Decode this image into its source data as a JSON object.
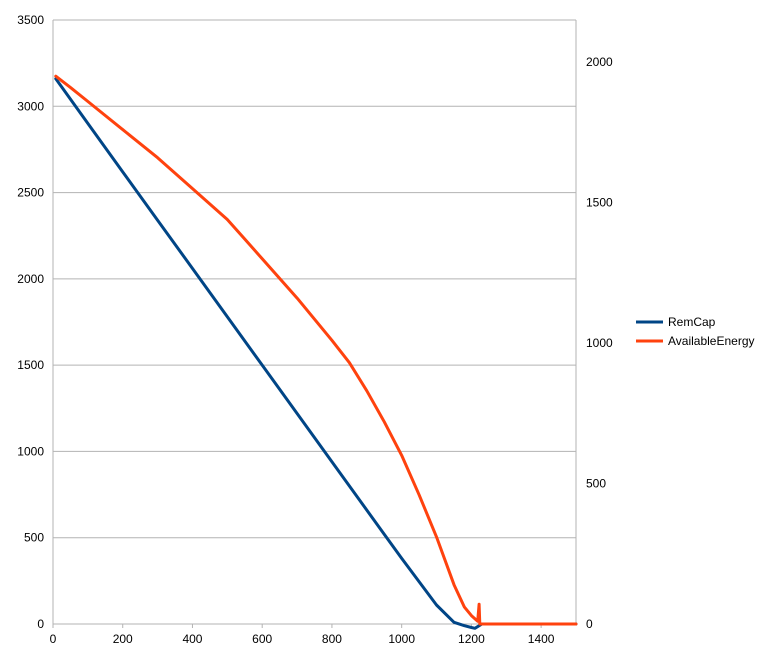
{
  "chart_data": {
    "type": "line",
    "title": "",
    "xlabel": "",
    "ylabel": "",
    "y2label": "",
    "grid": true,
    "legend_position": "right",
    "xlim": [
      0,
      1500
    ],
    "ylim": [
      0,
      3500
    ],
    "y2lim": [
      0,
      2150
    ],
    "x_ticks": [
      0,
      200,
      400,
      600,
      800,
      1000,
      1200,
      1400
    ],
    "y_ticks": [
      0,
      500,
      1000,
      1500,
      2000,
      2500,
      3000,
      3500
    ],
    "y2_ticks": [
      0,
      500,
      1000,
      1500,
      2000
    ],
    "series": [
      {
        "name": "RemCap",
        "axis": "left",
        "color": "#004586",
        "x": [
          8,
          100,
          200,
          300,
          400,
          500,
          600,
          700,
          800,
          900,
          1000,
          1100,
          1150,
          1180,
          1200,
          1210,
          1230,
          1300,
          1400,
          1500
        ],
        "y": [
          3160,
          2900,
          2620,
          2340,
          2060,
          1780,
          1500,
          1220,
          940,
          660,
          380,
          110,
          10,
          -10,
          -20,
          -25,
          0,
          0,
          0,
          0
        ]
      },
      {
        "name": "AvailableEnergy",
        "axis": "right",
        "color": "#ff420e",
        "x": [
          8,
          50,
          100,
          200,
          300,
          400,
          500,
          550,
          600,
          700,
          800,
          850,
          900,
          950,
          1000,
          1050,
          1100,
          1150,
          1180,
          1200,
          1218,
          1222,
          1224,
          1226,
          1300,
          1400,
          1500
        ],
        "y": [
          1950,
          1910,
          1860,
          1760,
          1660,
          1550,
          1440,
          1370,
          1300,
          1160,
          1010,
          930,
          830,
          720,
          600,
          460,
          310,
          140,
          60,
          30,
          10,
          70,
          0,
          0,
          0,
          0,
          0
        ]
      }
    ]
  }
}
